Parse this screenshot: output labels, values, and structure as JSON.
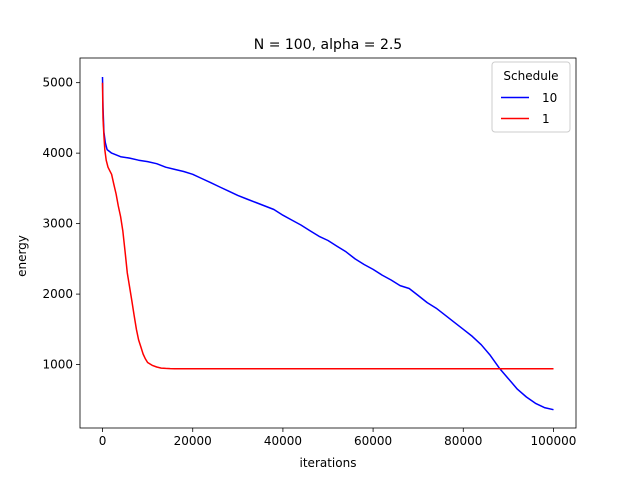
{
  "chart_data": {
    "type": "line",
    "title": "N = 100, alpha = 2.5",
    "xlabel": "iterations",
    "ylabel": "energy",
    "xlim": [
      -5000,
      105000
    ],
    "ylim": [
      100,
      5350
    ],
    "xticks": [
      0,
      20000,
      40000,
      60000,
      80000,
      100000
    ],
    "yticks": [
      1000,
      2000,
      3000,
      4000,
      5000
    ],
    "grid": false,
    "legend": {
      "title": "Schedule",
      "position": "top-right"
    },
    "series": [
      {
        "name": "10",
        "color": "#0000ff",
        "x": [
          0,
          100,
          300,
          600,
          1000,
          2000,
          4000,
          6000,
          8000,
          10000,
          12000,
          14000,
          16000,
          18000,
          20000,
          22000,
          24000,
          26000,
          28000,
          30000,
          32000,
          34000,
          36000,
          38000,
          40000,
          42000,
          44000,
          46000,
          48000,
          50000,
          52000,
          54000,
          56000,
          58000,
          60000,
          62000,
          64000,
          66000,
          68000,
          70000,
          72000,
          74000,
          76000,
          78000,
          80000,
          82000,
          84000,
          86000,
          88000,
          90000,
          92000,
          94000,
          96000,
          98000,
          100000
        ],
        "y": [
          5080,
          4650,
          4300,
          4150,
          4050,
          4000,
          3950,
          3930,
          3900,
          3880,
          3850,
          3800,
          3770,
          3740,
          3700,
          3640,
          3580,
          3520,
          3460,
          3400,
          3350,
          3300,
          3250,
          3200,
          3120,
          3050,
          2980,
          2900,
          2820,
          2760,
          2680,
          2600,
          2500,
          2420,
          2350,
          2270,
          2200,
          2120,
          2080,
          1980,
          1880,
          1800,
          1700,
          1600,
          1500,
          1400,
          1280,
          1130,
          950,
          800,
          650,
          540,
          450,
          390,
          360
        ]
      },
      {
        "name": "1",
        "color": "#ff0000",
        "x": [
          0,
          100,
          300,
          500,
          800,
          1200,
          1600,
          2000,
          2500,
          3000,
          3500,
          4000,
          4500,
          5000,
          5500,
          6000,
          6500,
          7000,
          7500,
          8000,
          8500,
          9000,
          9500,
          10000,
          11000,
          12000,
          13000,
          14000,
          15000,
          16000,
          18000,
          20000,
          25000,
          30000,
          40000,
          50000,
          60000,
          70000,
          80000,
          90000,
          100000
        ],
        "y": [
          5000,
          4500,
          4250,
          4050,
          3900,
          3800,
          3750,
          3700,
          3560,
          3420,
          3250,
          3100,
          2900,
          2600,
          2300,
          2100,
          1900,
          1700,
          1500,
          1350,
          1250,
          1150,
          1080,
          1030,
          990,
          965,
          950,
          945,
          943,
          941,
          940,
          940,
          940,
          940,
          940,
          940,
          940,
          940,
          940,
          940,
          940
        ]
      }
    ]
  }
}
